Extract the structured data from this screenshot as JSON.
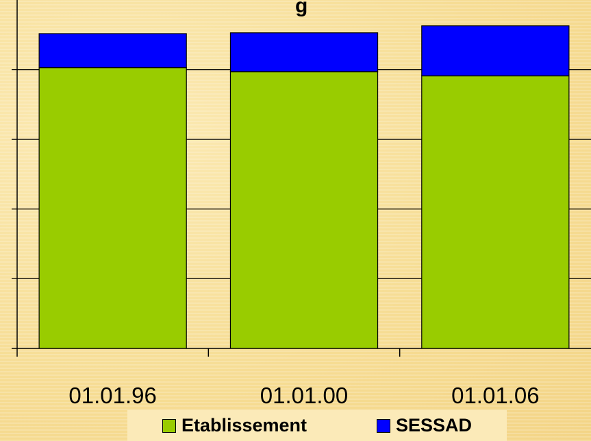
{
  "chart_data": {
    "type": "bar",
    "stacked": true,
    "title": "g",
    "categories": [
      "01.01.96",
      "01.01.00",
      "01.01.06"
    ],
    "series": [
      {
        "name": "Etablissement",
        "color": "#99cc00",
        "values": [
          68.5,
          67.5,
          66.5
        ]
      },
      {
        "name": "SESSAD",
        "color": "#0000ff",
        "values": [
          8.3,
          9.5,
          12.2
        ]
      }
    ],
    "ylim": [
      0,
      85
    ],
    "grid": true,
    "legend_position": "bottom"
  }
}
